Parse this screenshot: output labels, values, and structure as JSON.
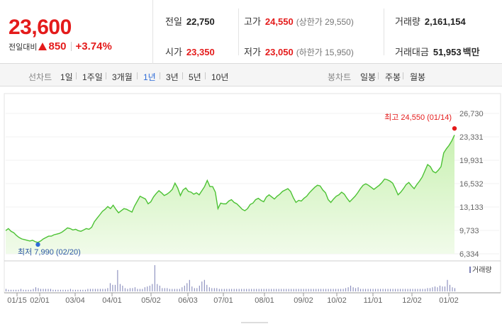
{
  "summary": {
    "now_price": "23,600",
    "change_label": "전일대비",
    "change_value": "850",
    "change_pct": "+3.74%"
  },
  "stats": {
    "prev_close": {
      "label": "전일",
      "value": "22,750"
    },
    "open": {
      "label": "시가",
      "value": "23,350"
    },
    "high": {
      "label": "고가",
      "value": "24,550",
      "limit": "(상한가 29,550)"
    },
    "low": {
      "label": "저가",
      "value": "23,050",
      "limit": "(하한가 15,950)"
    },
    "volume": {
      "label": "거래량",
      "value": "2,161,154"
    },
    "amount": {
      "label": "거래대금",
      "value": "51,953",
      "unit": "백만"
    }
  },
  "tabs": {
    "line_chart": "선차트",
    "periods": [
      "1일",
      "1주일",
      "3개월",
      "1년",
      "3년",
      "5년",
      "10년"
    ],
    "active_period": "1년",
    "candle_chart": "봉차트",
    "candle_periods": [
      "일봉",
      "주봉",
      "월봉"
    ]
  },
  "colors": {
    "up": "#e41b1b",
    "active_tab": "#2d6bd8",
    "line": "#4cc234",
    "area_top": "#c9f1b2",
    "area_bottom": "#f1fbea",
    "low_marker": "#2d6bd8",
    "volume_bar": "#7b7fb5"
  },
  "chart_data": {
    "type": "area",
    "y_ticks": [
      "26,730",
      "23,331",
      "19,931",
      "16,532",
      "13,133",
      "9,733",
      "6,334"
    ],
    "ylim": [
      6334,
      26730
    ],
    "x_ticks": [
      "01/15",
      "02/01",
      "03/04",
      "04/01",
      "05/02",
      "06/03",
      "07/01",
      "08/01",
      "09/02",
      "10/02",
      "11/01",
      "12/02",
      "01/02"
    ],
    "high_annotation": "최고 24,550 (01/14)",
    "low_annotation": "최저 7,990 (02/20)",
    "volume_legend": "거래량",
    "series": [
      {
        "values": [
          9700,
          10000,
          9600,
          9400,
          9000,
          8700,
          8500,
          8400,
          8300,
          8200,
          8300,
          8100,
          7990,
          8200,
          8500,
          8700,
          8900,
          8900,
          9100,
          9200,
          9300,
          9500,
          9800,
          10100,
          10000,
          9800,
          9900,
          9700,
          9600,
          9800,
          10000,
          9900,
          10200,
          11000,
          11500,
          12000,
          12500,
          12800,
          13200,
          12900,
          13400,
          12800,
          12300,
          12600,
          12900,
          12800,
          12600,
          12400,
          13300,
          14000,
          14700,
          14500,
          14300,
          13600,
          13900,
          14600,
          15100,
          15500,
          15200,
          14800,
          15000,
          15300,
          15700,
          16600,
          15900,
          14800,
          15600,
          15900,
          15400,
          15300,
          15000,
          15200,
          14900,
          15500,
          16100,
          17000,
          16100,
          16100,
          15300,
          12900,
          13700,
          13600,
          13600,
          14000,
          14200,
          13800,
          13600,
          13200,
          12800,
          12600,
          12900,
          13500,
          13700,
          14200,
          14400,
          14100,
          13900,
          14600,
          14900,
          14600,
          14300,
          14700,
          15000,
          15400,
          15600,
          15800,
          15400,
          14500,
          13800,
          14100,
          14000,
          14400,
          14700,
          15200,
          15600,
          16000,
          16300,
          16200,
          15600,
          15200,
          14200,
          13800,
          14300,
          14700,
          14900,
          15300,
          15000,
          14400,
          13900,
          14300,
          14700,
          15200,
          15800,
          16300,
          16500,
          16300,
          16000,
          15700,
          16000,
          16300,
          16700,
          17200,
          17100,
          16900,
          16600,
          15800,
          14900,
          15300,
          15800,
          16400,
          16700,
          16200,
          15800,
          16400,
          16900,
          17500,
          18400,
          19300,
          19000,
          18300,
          18100,
          18500,
          19000,
          21000,
          21600,
          22100,
          22750,
          23600
        ]
      }
    ],
    "volume": [
      3,
      2,
      2,
      2,
      2,
      2,
      3,
      2,
      2,
      2,
      2,
      3,
      5,
      4,
      3,
      3,
      3,
      3,
      3,
      2,
      2,
      2,
      2,
      2,
      2,
      2,
      3,
      2,
      2,
      2,
      2,
      2,
      2,
      3,
      3,
      3,
      3,
      3,
      3,
      3,
      3,
      4,
      10,
      8,
      8,
      26,
      9,
      7,
      4,
      3,
      4,
      4,
      5,
      3,
      3,
      3,
      5,
      6,
      7,
      9,
      32,
      9,
      7,
      4,
      4,
      4,
      3,
      3,
      3,
      3,
      3,
      5,
      7,
      10,
      14,
      6,
      4,
      4,
      7,
      12,
      14,
      8,
      5,
      4,
      4,
      4,
      3,
      3,
      3,
      3,
      3,
      3,
      3,
      3,
      3,
      3,
      3,
      3,
      3,
      3,
      3,
      3,
      3,
      3,
      3,
      3,
      3,
      3,
      3,
      3,
      3,
      3,
      3,
      3,
      3,
      3,
      3,
      3,
      3,
      3,
      3,
      3,
      3,
      3,
      3,
      3,
      3,
      3,
      3,
      3,
      3,
      3,
      3,
      3,
      3,
      3,
      3,
      4,
      5,
      7,
      5,
      4,
      5,
      3,
      3,
      3,
      3,
      3,
      3,
      3,
      3,
      3,
      3,
      3,
      3,
      3,
      3,
      3,
      3,
      3,
      3,
      3,
      3,
      3,
      3,
      3,
      3,
      3,
      3,
      3,
      4,
      4,
      5,
      6,
      5,
      7,
      6,
      6,
      14,
      8,
      5,
      4
    ]
  }
}
